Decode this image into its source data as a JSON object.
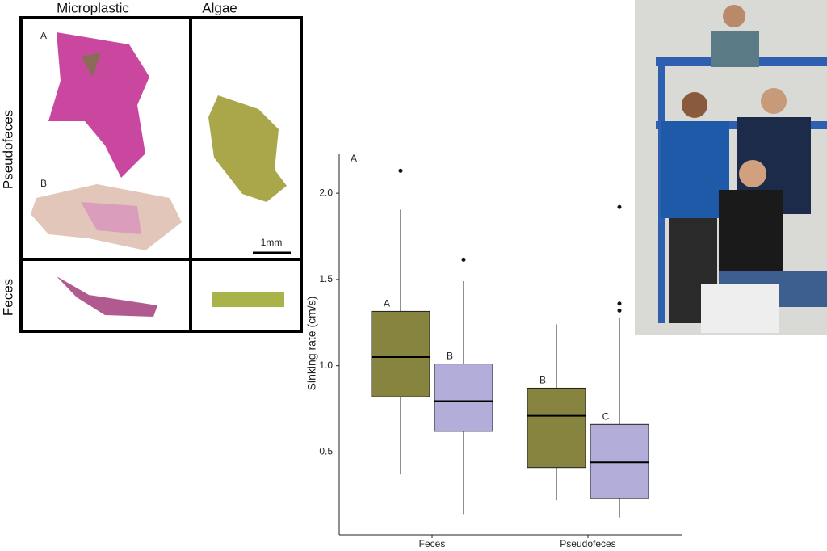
{
  "panel": {
    "column_labels": [
      "Microplastic",
      "Algae"
    ],
    "row_labels": [
      "Pseudofeces",
      "Feces"
    ],
    "image_labels": [
      "A",
      "B"
    ],
    "scale_bar": "1mm"
  },
  "chart_data": {
    "type": "box",
    "panel_label": "A",
    "y_label": "Sinking rate (cm/s)",
    "categories": [
      "Feces",
      "Pseudofeces"
    ],
    "ylim": [
      0.02,
      2.23
    ],
    "yticks": [
      0.5,
      {
        "value": 1,
        "label": "1.0"
      },
      1.5,
      {
        "value": 2,
        "label": "2.0"
      }
    ],
    "series": [
      {
        "color": "#87843f",
        "whisker_low": [
          0.37,
          0.22
        ],
        "q1": [
          0.82,
          0.41
        ],
        "median": [
          1.05,
          0.71
        ],
        "q3": [
          1.315,
          0.87
        ],
        "whisker_high": [
          1.905,
          1.24
        ],
        "outliers": [
          [
            2.13
          ],
          []
        ],
        "letters": [
          "A",
          "B"
        ]
      },
      {
        "color": "#b2aed9",
        "whisker_low": [
          0.14,
          0.12
        ],
        "q1": [
          0.62,
          0.23
        ],
        "median": [
          0.795,
          0.44
        ],
        "q3": [
          1.01,
          0.66
        ],
        "whisker_high": [
          1.49,
          1.28
        ],
        "outliers": [
          [
            1.615
          ],
          [
            1.92,
            1.36,
            1.32
          ]
        ],
        "letters": [
          "B",
          "C"
        ]
      }
    ]
  }
}
